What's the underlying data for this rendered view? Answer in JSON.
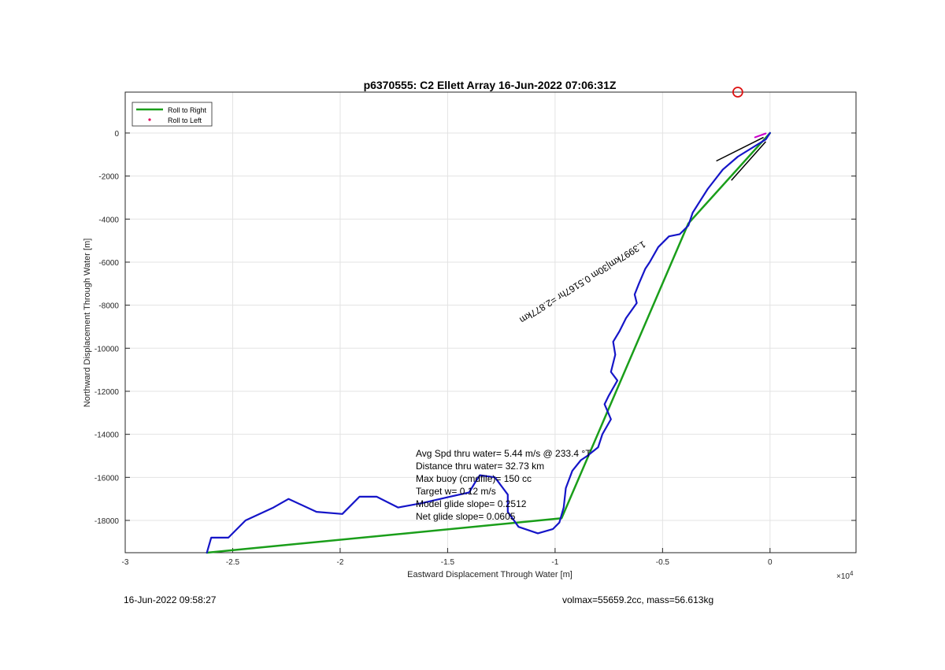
{
  "chart_data": {
    "type": "line",
    "title": "p6370555: C2 Ellett Array 16-Jun-2022 07:06:31Z",
    "xlabel": "Eastward Displacement Through Water [m]",
    "ylabel": "Northward Displacement Through Water [m]",
    "x_multiplier_label": "×10",
    "x_multiplier_exp": "4",
    "xlim": [
      -30000,
      4000
    ],
    "ylim": [
      -19500,
      1900
    ],
    "xticks": [
      -30000,
      -25000,
      -20000,
      -15000,
      -10000,
      -5000,
      0
    ],
    "xtick_labels": [
      "-3",
      "-2.5",
      "-2",
      "-1.5",
      "-1",
      "-0.5",
      "0"
    ],
    "yticks": [
      0,
      -2000,
      -4000,
      -6000,
      -8000,
      -10000,
      -12000,
      -14000,
      -16000,
      -18000
    ],
    "ytick_labels": [
      "0",
      "-2000",
      "-4000",
      "-6000",
      "-8000",
      "-10000",
      "-12000",
      "-14000",
      "-16000",
      "-18000"
    ],
    "grid": true,
    "legend_position": "top-left",
    "legend": [
      {
        "label": "Roll to Right",
        "color": "#1a9e1a",
        "marker": "line"
      },
      {
        "label": "Roll to Left",
        "color": "#e0005a",
        "marker": "dot"
      }
    ],
    "series": [
      {
        "name": "Roll to Right",
        "color": "#1a9e1a",
        "points": [
          [
            0,
            0
          ],
          [
            -3800,
            -4200
          ],
          [
            -9700,
            -17900
          ],
          [
            -26200,
            -19500
          ],
          [
            -9700,
            -17900
          ],
          [
            -3800,
            -4200
          ],
          [
            0,
            0
          ]
        ]
      },
      {
        "color": "#1515c8",
        "points": [
          [
            0,
            0
          ],
          [
            -200,
            -300
          ],
          [
            -1500,
            -1100
          ],
          [
            -2200,
            -1700
          ],
          [
            -2900,
            -2600
          ],
          [
            -3600,
            -3700
          ],
          [
            -3800,
            -4300
          ],
          [
            -4200,
            -4700
          ],
          [
            -4700,
            -4800
          ],
          [
            -5200,
            -5300
          ],
          [
            -5600,
            -6000
          ],
          [
            -5800,
            -6300
          ],
          [
            -6100,
            -7000
          ],
          [
            -6300,
            -7500
          ],
          [
            -6200,
            -7900
          ],
          [
            -6700,
            -8600
          ],
          [
            -7000,
            -9200
          ],
          [
            -7300,
            -9700
          ],
          [
            -7200,
            -10300
          ],
          [
            -7400,
            -11100
          ],
          [
            -7100,
            -11500
          ],
          [
            -7500,
            -12200
          ],
          [
            -7700,
            -12600
          ],
          [
            -7400,
            -13300
          ],
          [
            -7800,
            -14000
          ],
          [
            -8000,
            -14600
          ],
          [
            -8500,
            -15000
          ],
          [
            -8800,
            -15200
          ],
          [
            -9200,
            -15700
          ],
          [
            -9500,
            -16500
          ],
          [
            -9600,
            -17400
          ],
          [
            -9800,
            -18100
          ],
          [
            -10100,
            -18400
          ],
          [
            -10800,
            -18600
          ],
          [
            -11700,
            -18300
          ],
          [
            -12200,
            -17600
          ],
          [
            -12200,
            -16800
          ],
          [
            -12800,
            -16000
          ],
          [
            -13500,
            -15900
          ],
          [
            -13700,
            -16200
          ],
          [
            -14000,
            -16700
          ],
          [
            -14900,
            -16900
          ],
          [
            -16200,
            -17200
          ],
          [
            -17300,
            -17400
          ],
          [
            -18300,
            -16900
          ],
          [
            -19100,
            -16900
          ],
          [
            -19900,
            -17700
          ],
          [
            -21100,
            -17600
          ],
          [
            -22400,
            -17000
          ],
          [
            -23100,
            -17400
          ],
          [
            -24400,
            -18000
          ],
          [
            -25200,
            -18800
          ],
          [
            -26000,
            -18800
          ],
          [
            -26200,
            -19500
          ]
        ]
      },
      {
        "color": "#cc00cc",
        "points": [
          [
            -700,
            -200
          ],
          [
            -200,
            -20
          ]
        ]
      }
    ],
    "waypoint_circle": {
      "x": -1500,
      "y": 1900,
      "color": "#dd1111"
    },
    "heading_lines": [
      {
        "points": [
          [
            -2500,
            -1300
          ],
          [
            -300,
            -200
          ]
        ],
        "color": "#000000"
      },
      {
        "points": [
          [
            -1800,
            -2200
          ],
          [
            -200,
            -400
          ]
        ],
        "color": "#000000"
      }
    ],
    "segment_label": {
      "text": "1.3997km|30m 0.5167hr =2.877km",
      "anchor": [
        -5900,
        -5000
      ],
      "rotate_deg": 148
    },
    "stats": [
      "Avg Spd thru water=  5.44 m/s @ 233.4 °T",
      "Distance thru water= 32.73 km",
      "Max buoy (cmdfile)= 150 cc",
      "Target w= 0.12 m/s",
      "Model glide slope= 0.2512",
      "Net glide slope= 0.0605"
    ]
  },
  "footer": {
    "timestamp": "16-Jun-2022 09:58:27",
    "volmax_mass": "volmax=55659.2cc, mass=56.613kg"
  }
}
